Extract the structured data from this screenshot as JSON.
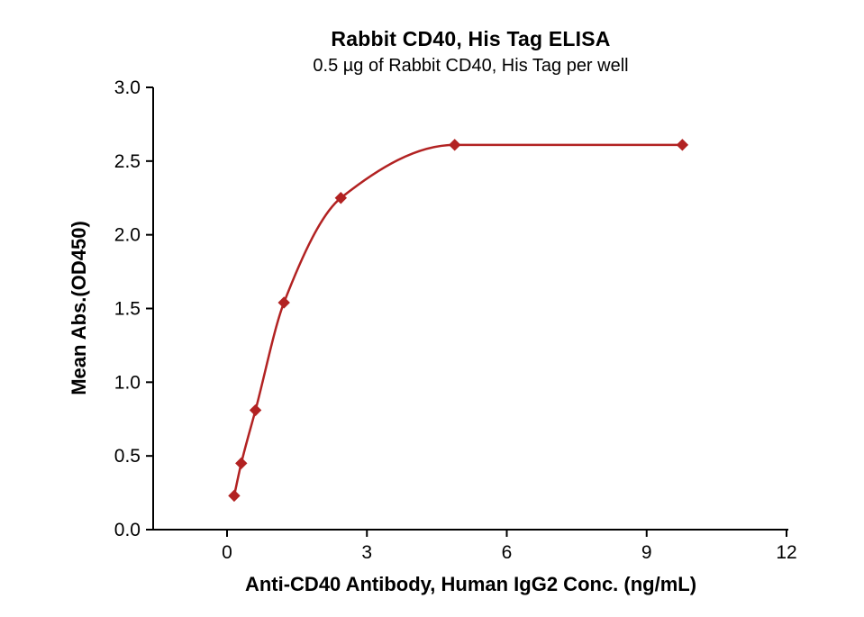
{
  "chart_data": {
    "type": "scatter",
    "title": "Rabbit CD40, His Tag ELISA",
    "subtitle": "0.5 µg of Rabbit CD40, His Tag per well",
    "xlabel": "Anti-CD40 Antibody, Human IgG2 Conc. (ng/mL)",
    "ylabel": "Mean Abs.(OD450)",
    "x": [
      0.153,
      0.305,
      0.61,
      1.221,
      2.441,
      4.883,
      9.766
    ],
    "y": [
      0.23,
      0.45,
      0.81,
      1.54,
      2.25,
      2.61,
      2.61
    ],
    "xlim": [
      0,
      12
    ],
    "ylim": [
      0,
      3
    ],
    "xticks": [
      0,
      3,
      6,
      9,
      12
    ],
    "yticks": [
      0,
      0.5,
      1,
      1.5,
      2,
      2.5,
      3
    ],
    "x_tick_decimals": 0,
    "y_tick_decimals": 1,
    "marker": "diamond",
    "color": "#b22222",
    "axis_color": "#000000",
    "curve": "4PL sigmoidal fit through points",
    "grid": false,
    "legend": "none"
  }
}
